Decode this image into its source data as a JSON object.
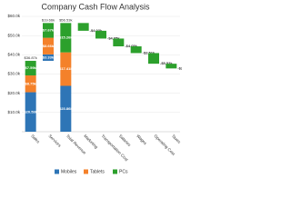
{
  "chart_data": {
    "type": "waterfall",
    "title": "Company Cash Flow Analysis",
    "categories": [
      "Sales",
      "Services",
      "Total Revenue",
      "Marketing",
      "Transportation Cost",
      "Salaries",
      "Wages",
      "Operating Cost",
      "Taxes"
    ],
    "totals": [
      false,
      false,
      true,
      false,
      false,
      false,
      false,
      false,
      false
    ],
    "series": [
      {
        "name": "Mobiles",
        "color": "#2e75b6",
        "values": [
          20.53,
          3.33,
          23.86,
          null,
          null,
          null,
          null,
          null,
          null
        ],
        "value_labels": [
          "$20.53k",
          "$3.33k",
          "$23.86k",
          null,
          null,
          null,
          null,
          null,
          null
        ]
      },
      {
        "name": "Tablets",
        "color": "#f4812a",
        "values": [
          8.75,
          8.66,
          17.41,
          null,
          null,
          null,
          null,
          null,
          null
        ],
        "value_labels": [
          "$8.75k",
          "$8.66k",
          "$17.41k",
          null,
          null,
          null,
          null,
          null,
          null
        ]
      },
      {
        "name": "PCs",
        "color": "#2ca02c",
        "values": [
          7.59,
          7.67,
          15.26,
          -4.03,
          -4.05,
          -4.05,
          -3.51,
          -5.53,
          -2.45
        ],
        "value_labels": [
          "$7.59k",
          "$7.67k",
          "$15.26k",
          "-$4.03k",
          "-$4.05k",
          "-$4.05k",
          "-$3.51k",
          "-$5.53k",
          "-$2.45k"
        ]
      }
    ],
    "total_labels": [
      "$36.87k",
      "$19.66k",
      "$56.53k",
      null,
      null,
      null,
      null,
      null,
      null
    ],
    "ylim": [
      0,
      60
    ],
    "yticks": [
      {
        "value": 10,
        "label": "$10.0k"
      },
      {
        "value": 20,
        "label": "$20.0k"
      },
      {
        "value": 30,
        "label": "$30.0k"
      },
      {
        "value": 40,
        "label": "$40.0k"
      },
      {
        "value": 50,
        "label": "$50.0k"
      },
      {
        "value": 60,
        "label": "$60.0k"
      }
    ],
    "grid": true,
    "legend": "bottom"
  }
}
